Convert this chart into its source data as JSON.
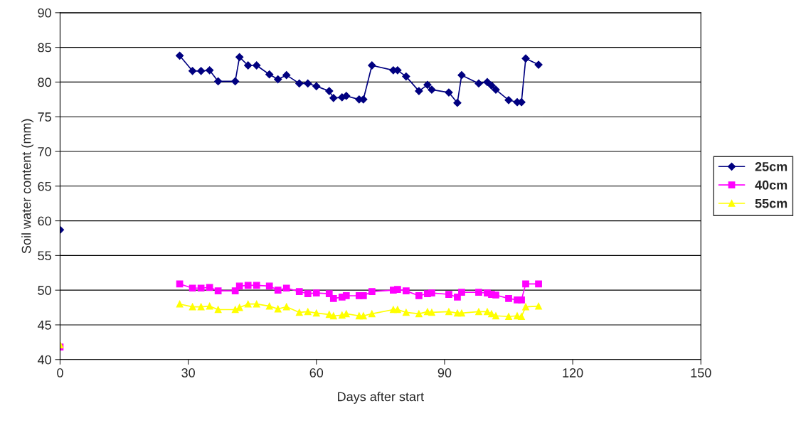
{
  "chart_data": {
    "type": "line",
    "xlabel": "Days after start",
    "ylabel": "Soil water content (mm)",
    "x": [
      0,
      14,
      28,
      31,
      33,
      35,
      37,
      41,
      42,
      44,
      46,
      49,
      51,
      53,
      56,
      58,
      60,
      63,
      64,
      66,
      67,
      70,
      71,
      73,
      78,
      79,
      81,
      84,
      86,
      87,
      91,
      93,
      94,
      98,
      100,
      101,
      102,
      105,
      107,
      108,
      109,
      112
    ],
    "series": [
      {
        "name": "25cm",
        "color": "#000080",
        "marker": "diamond",
        "values": [
          58.7,
          null,
          83.8,
          81.6,
          81.6,
          81.7,
          80.1,
          80.1,
          83.6,
          82.4,
          82.4,
          81.1,
          80.4,
          81.0,
          79.8,
          79.8,
          79.4,
          78.7,
          77.7,
          77.8,
          78.0,
          77.5,
          77.5,
          82.4,
          81.7,
          81.7,
          80.8,
          78.7,
          79.6,
          78.9,
          78.5,
          77.0,
          81.0,
          79.8,
          80.0,
          79.5,
          78.9,
          77.4,
          77.1,
          77.1,
          83.4,
          82.5
        ]
      },
      {
        "name": "40cm",
        "color": "#ff00ff",
        "marker": "square",
        "values": [
          41.8,
          null,
          50.9,
          50.3,
          50.3,
          50.4,
          49.9,
          49.9,
          50.6,
          50.7,
          50.7,
          50.6,
          50.0,
          50.3,
          49.8,
          49.5,
          49.6,
          49.5,
          48.8,
          49.0,
          49.2,
          49.2,
          49.2,
          49.8,
          50.0,
          50.1,
          49.9,
          49.2,
          49.5,
          49.6,
          49.4,
          49.0,
          49.7,
          49.7,
          49.6,
          49.4,
          49.3,
          48.8,
          48.6,
          48.6,
          50.9,
          50.9
        ]
      },
      {
        "name": "55cm",
        "color": "#ffff00",
        "marker": "triangle",
        "values": [
          42.1,
          null,
          48.0,
          47.6,
          47.6,
          47.7,
          47.2,
          47.2,
          47.5,
          48.0,
          48.0,
          47.7,
          47.3,
          47.6,
          46.8,
          46.9,
          46.7,
          46.5,
          46.3,
          46.4,
          46.6,
          46.3,
          46.3,
          46.6,
          47.2,
          47.2,
          46.8,
          46.6,
          46.9,
          46.8,
          46.9,
          46.7,
          46.7,
          46.9,
          46.9,
          46.6,
          46.3,
          46.2,
          46.3,
          46.2,
          47.6,
          47.7
        ]
      }
    ],
    "xlim": [
      0,
      150
    ],
    "xticks": [
      0,
      30,
      60,
      90,
      120,
      150
    ],
    "ylim": [
      40,
      90
    ],
    "yticks": [
      40,
      45,
      50,
      55,
      60,
      65,
      70,
      75,
      80,
      85,
      90
    ],
    "grid": "y",
    "legend": "right",
    "line_style": "solid"
  }
}
